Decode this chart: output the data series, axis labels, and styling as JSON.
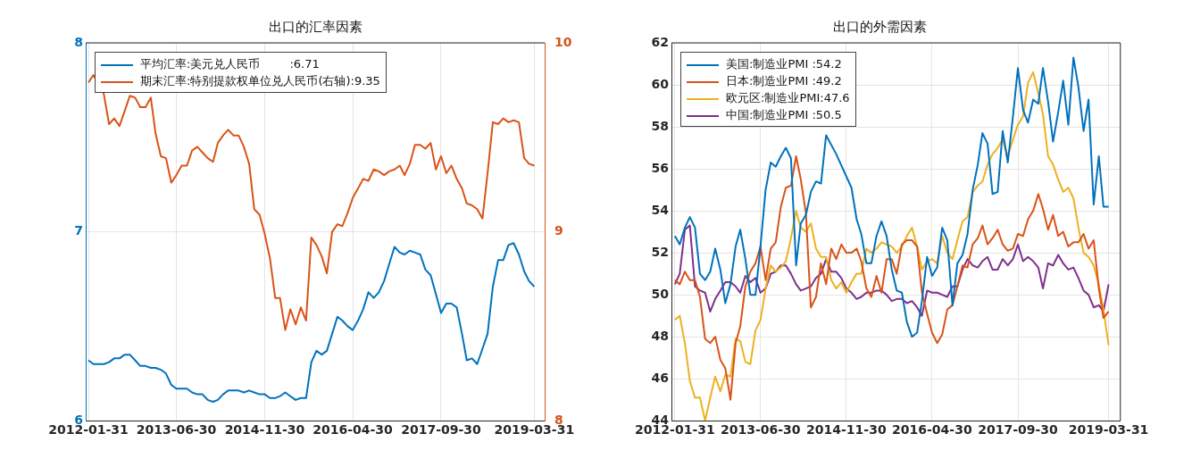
{
  "chart_data": [
    {
      "type": "line",
      "title": "出口的汇率因素",
      "legend": "top left",
      "grid": true,
      "x": [
        "2012-01-31",
        "2012-02-29",
        "2012-03-31",
        "2012-04-30",
        "2012-05-31",
        "2012-06-30",
        "2012-07-31",
        "2012-08-31",
        "2012-09-30",
        "2012-10-31",
        "2012-11-30",
        "2012-12-31",
        "2013-01-31",
        "2013-02-28",
        "2013-03-31",
        "2013-04-30",
        "2013-05-31",
        "2013-06-30",
        "2013-07-31",
        "2013-08-31",
        "2013-09-30",
        "2013-10-31",
        "2013-11-30",
        "2013-12-31",
        "2014-01-31",
        "2014-02-28",
        "2014-03-31",
        "2014-04-30",
        "2014-05-31",
        "2014-06-30",
        "2014-07-31",
        "2014-08-31",
        "2014-09-30",
        "2014-10-31",
        "2014-11-30",
        "2014-12-31",
        "2015-01-31",
        "2015-02-28",
        "2015-03-31",
        "2015-04-30",
        "2015-05-31",
        "2015-06-30",
        "2015-07-31",
        "2015-08-31",
        "2015-09-30",
        "2015-10-31",
        "2015-11-30",
        "2015-12-31",
        "2016-01-31",
        "2016-02-29",
        "2016-03-31",
        "2016-04-30",
        "2016-05-31",
        "2016-06-30",
        "2016-07-31",
        "2016-08-31",
        "2016-09-30",
        "2016-10-31",
        "2016-11-30",
        "2016-12-31",
        "2017-01-31",
        "2017-02-28",
        "2017-03-31",
        "2017-04-30",
        "2017-05-31",
        "2017-06-30",
        "2017-07-31",
        "2017-08-31",
        "2017-09-30",
        "2017-10-31",
        "2017-11-30",
        "2017-12-31",
        "2018-01-31",
        "2018-02-28",
        "2018-03-31",
        "2018-04-30",
        "2018-05-31",
        "2018-06-30",
        "2018-07-31",
        "2018-08-31",
        "2018-09-30",
        "2018-10-31",
        "2018-11-30",
        "2018-12-31",
        "2019-01-31",
        "2019-02-28",
        "2019-03-31"
      ],
      "xlim": [
        "2012-01-15",
        "2019-05-31"
      ],
      "xticks": [
        "2012-01-31",
        "2013-06-30",
        "2014-11-30",
        "2016-04-30",
        "2017-09-30",
        "2019-03-31"
      ],
      "ylim": [
        6,
        8
      ],
      "yticks": [
        6,
        7,
        8
      ],
      "y2lim": [
        8,
        10
      ],
      "y2ticks": [
        8,
        9,
        10
      ],
      "series": [
        {
          "name": "平均汇率:美元兑人民币        :6.71",
          "color": "#0072bd",
          "values": [
            6.32,
            6.3,
            6.3,
            6.3,
            6.31,
            6.33,
            6.33,
            6.35,
            6.35,
            6.32,
            6.29,
            6.29,
            6.28,
            6.28,
            6.27,
            6.25,
            6.19,
            6.17,
            6.17,
            6.17,
            6.15,
            6.14,
            6.14,
            6.11,
            6.1,
            6.11,
            6.14,
            6.16,
            6.16,
            6.16,
            6.15,
            6.16,
            6.15,
            6.14,
            6.14,
            6.12,
            6.12,
            6.13,
            6.15,
            6.13,
            6.11,
            6.12,
            6.12,
            6.31,
            6.37,
            6.35,
            6.37,
            6.46,
            6.55,
            6.53,
            6.5,
            6.48,
            6.53,
            6.59,
            6.68,
            6.65,
            6.68,
            6.74,
            6.83,
            6.92,
            6.89,
            6.88,
            6.9,
            6.89,
            6.88,
            6.8,
            6.77,
            6.67,
            6.57,
            6.62,
            6.62,
            6.6,
            6.46,
            6.32,
            6.33,
            6.3,
            6.38,
            6.46,
            6.71,
            6.85,
            6.85,
            6.93,
            6.94,
            6.88,
            6.79,
            6.74,
            6.71
          ]
        },
        {
          "name": "期末汇率:特别提款权单位兑人民币(右轴):9.35",
          "color": "#d95319",
          "axis": "y2",
          "values": [
            9.79,
            9.83,
            null,
            9.73,
            9.57,
            9.6,
            9.56,
            9.64,
            9.72,
            9.71,
            9.66,
            9.66,
            9.71,
            9.52,
            9.4,
            9.39,
            9.26,
            9.3,
            9.35,
            9.35,
            9.43,
            9.45,
            9.42,
            9.39,
            9.37,
            9.47,
            9.51,
            9.54,
            9.51,
            9.51,
            9.45,
            9.36,
            9.12,
            9.09,
            8.99,
            8.86,
            8.65,
            8.65,
            8.48,
            8.59,
            8.51,
            8.6,
            8.53,
            8.97,
            8.93,
            8.87,
            8.78,
            9.0,
            9.04,
            9.03,
            9.1,
            9.18,
            9.23,
            9.28,
            9.27,
            9.33,
            9.32,
            9.3,
            9.32,
            9.33,
            9.35,
            9.3,
            9.36,
            9.46,
            9.46,
            9.44,
            9.47,
            9.33,
            9.4,
            9.31,
            9.35,
            9.28,
            9.23,
            9.15,
            9.14,
            9.12,
            9.07,
            9.31,
            9.58,
            9.57,
            9.6,
            9.58,
            9.59,
            9.58,
            9.39,
            9.36,
            9.35
          ]
        }
      ]
    },
    {
      "type": "line",
      "title": "出口的外需因素",
      "legend": "top left",
      "grid": true,
      "x": [
        "2012-01-31",
        "2012-02-29",
        "2012-03-31",
        "2012-04-30",
        "2012-05-31",
        "2012-06-30",
        "2012-07-31",
        "2012-08-31",
        "2012-09-30",
        "2012-10-31",
        "2012-11-30",
        "2012-12-31",
        "2013-01-31",
        "2013-02-28",
        "2013-03-31",
        "2013-04-30",
        "2013-05-31",
        "2013-06-30",
        "2013-07-31",
        "2013-08-31",
        "2013-09-30",
        "2013-10-31",
        "2013-11-30",
        "2013-12-31",
        "2014-01-31",
        "2014-02-28",
        "2014-03-31",
        "2014-04-30",
        "2014-05-31",
        "2014-06-30",
        "2014-07-31",
        "2014-08-31",
        "2014-09-30",
        "2014-10-31",
        "2014-11-30",
        "2014-12-31",
        "2015-01-31",
        "2015-02-28",
        "2015-03-31",
        "2015-04-30",
        "2015-05-31",
        "2015-06-30",
        "2015-07-31",
        "2015-08-31",
        "2015-09-30",
        "2015-10-31",
        "2015-11-30",
        "2015-12-31",
        "2016-01-31",
        "2016-02-29",
        "2016-03-31",
        "2016-04-30",
        "2016-05-31",
        "2016-06-30",
        "2016-07-31",
        "2016-08-31",
        "2016-09-30",
        "2016-10-31",
        "2016-11-30",
        "2016-12-31",
        "2017-01-31",
        "2017-02-28",
        "2017-03-31",
        "2017-04-30",
        "2017-05-31",
        "2017-06-30",
        "2017-07-31",
        "2017-08-31",
        "2017-09-30",
        "2017-10-31",
        "2017-11-30",
        "2017-12-31",
        "2018-01-31",
        "2018-02-28",
        "2018-03-31",
        "2018-04-30",
        "2018-05-31",
        "2018-06-30",
        "2018-07-31",
        "2018-08-31",
        "2018-09-30",
        "2018-10-31",
        "2018-11-30",
        "2018-12-31",
        "2019-01-31",
        "2019-02-28",
        "2019-03-31"
      ],
      "xlim": [
        "2012-01-10",
        "2019-06-10"
      ],
      "xticks": [
        "2012-01-31",
        "2013-06-30",
        "2014-11-30",
        "2016-04-30",
        "2017-09-30",
        "2019-03-31"
      ],
      "ylim": [
        44,
        62
      ],
      "yticks": [
        44,
        46,
        48,
        50,
        52,
        54,
        56,
        58,
        60,
        62
      ],
      "series": [
        {
          "name": "美国:制造业PMI :54.2",
          "color": "#0072bd",
          "values": [
            52.8,
            52.4,
            53.2,
            53.7,
            53.2,
            51.0,
            50.7,
            51.1,
            52.2,
            51.2,
            49.6,
            50.5,
            52.3,
            53.1,
            51.7,
            50.0,
            50.0,
            52.3,
            55.0,
            56.3,
            56.1,
            56.6,
            57.0,
            56.5,
            51.4,
            53.4,
            53.8,
            54.9,
            55.4,
            55.3,
            57.6,
            null,
            56.7,
            null,
            null,
            55.1,
            53.6,
            52.9,
            51.5,
            51.5,
            52.8,
            53.5,
            52.8,
            51.2,
            50.2,
            50.1,
            48.7,
            48.0,
            48.2,
            49.7,
            51.8,
            50.9,
            51.3,
            53.2,
            52.6,
            49.5,
            51.5,
            51.9,
            52.9,
            55.0,
            56.2,
            57.7,
            57.2,
            54.8,
            54.9,
            57.8,
            56.3,
            58.5,
            60.8,
            58.8,
            58.2,
            59.3,
            59.1,
            60.8,
            59.2,
            57.3,
            58.7,
            60.2,
            58.1,
            61.3,
            59.9,
            57.8,
            59.3,
            54.3,
            56.6,
            54.2,
            54.2
          ]
        },
        {
          "name": "日本:制造业PMI :49.2",
          "color": "#d95319",
          "values": [
            50.7,
            50.5,
            51.1,
            50.7,
            50.7,
            49.9,
            47.9,
            47.7,
            48.0,
            46.9,
            46.5,
            45.0,
            47.7,
            48.5,
            50.4,
            51.1,
            51.5,
            52.3,
            50.7,
            52.2,
            52.5,
            54.2,
            55.1,
            55.2,
            56.6,
            55.5,
            53.9,
            49.4,
            49.9,
            51.5,
            50.5,
            52.2,
            51.7,
            52.4,
            52.0,
            52.0,
            52.2,
            51.6,
            50.3,
            49.9,
            50.9,
            50.1,
            51.7,
            51.7,
            51.0,
            52.4,
            52.6,
            52.6,
            52.3,
            50.1,
            49.1,
            48.2,
            47.7,
            48.1,
            49.3,
            49.5,
            50.4,
            51.4,
            51.3,
            52.4,
            52.7,
            53.3,
            52.4,
            52.7,
            53.1,
            52.4,
            52.1,
            52.2,
            52.9,
            52.8,
            53.6,
            54.0,
            54.8,
            54.1,
            53.1,
            53.8,
            52.8,
            53.0,
            52.3,
            52.5,
            52.5,
            52.9,
            52.2,
            52.6,
            50.3,
            48.9,
            49.2
          ]
        },
        {
          "name": "欧元区:制造业PMI:47.6",
          "color": "#edb120",
          "values": [
            48.8,
            49.0,
            47.7,
            45.9,
            45.1,
            45.1,
            44.0,
            45.1,
            46.1,
            45.4,
            46.2,
            46.1,
            47.9,
            47.8,
            46.8,
            46.7,
            48.3,
            48.8,
            50.3,
            51.4,
            51.1,
            51.3,
            51.6,
            52.7,
            54.0,
            53.2,
            53.0,
            53.4,
            52.2,
            51.8,
            51.8,
            50.7,
            50.3,
            50.6,
            50.1,
            50.6,
            51.0,
            51.0,
            52.2,
            52.0,
            52.2,
            52.5,
            52.4,
            52.3,
            52.0,
            52.3,
            52.8,
            53.2,
            52.3,
            51.2,
            51.6,
            51.7,
            51.5,
            52.8,
            52.0,
            51.7,
            52.6,
            53.5,
            53.7,
            54.9,
            55.2,
            55.4,
            56.2,
            56.7,
            57.0,
            57.4,
            56.6,
            57.4,
            58.1,
            58.5,
            60.1,
            60.6,
            59.6,
            58.6,
            56.6,
            56.2,
            55.5,
            54.9,
            55.1,
            54.6,
            53.2,
            52.0,
            51.8,
            51.4,
            50.5,
            49.3,
            47.6
          ]
        },
        {
          "name": "中国:制造业PMI :50.5",
          "color": "#7e2f8e",
          "values": [
            50.5,
            51.0,
            53.1,
            53.3,
            50.4,
            50.2,
            50.1,
            49.2,
            49.8,
            50.2,
            50.6,
            50.6,
            50.4,
            50.1,
            50.9,
            50.6,
            50.8,
            50.1,
            50.3,
            51.0,
            51.1,
            51.4,
            51.4,
            51.0,
            50.5,
            50.2,
            50.3,
            50.4,
            50.8,
            51.0,
            51.7,
            51.1,
            51.1,
            50.8,
            50.3,
            50.1,
            49.8,
            49.9,
            50.1,
            50.1,
            50.2,
            50.2,
            50.0,
            49.7,
            49.8,
            49.8,
            49.6,
            49.7,
            49.4,
            49.0,
            50.2,
            50.1,
            50.1,
            50.0,
            49.9,
            50.4,
            50.4,
            51.2,
            51.7,
            51.4,
            51.3,
            51.6,
            51.8,
            51.2,
            51.2,
            51.7,
            51.4,
            51.7,
            52.4,
            51.6,
            51.8,
            51.6,
            51.3,
            50.3,
            51.5,
            51.4,
            51.9,
            51.5,
            51.2,
            51.3,
            50.8,
            50.2,
            50.0,
            49.4,
            49.5,
            49.2,
            50.5
          ]
        }
      ]
    }
  ]
}
